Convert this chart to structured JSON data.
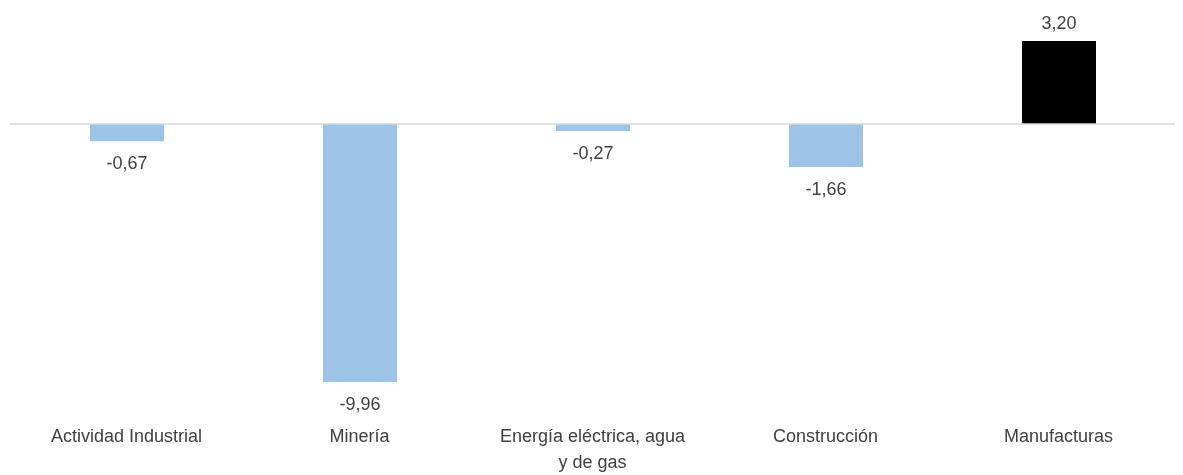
{
  "chart_data": {
    "type": "bar",
    "categories": [
      "Actividad Industrial",
      "Minería",
      "Energía eléctrica, agua y de gas",
      "Construcción",
      "Manufacturas"
    ],
    "values": [
      -0.67,
      -9.96,
      -0.27,
      -1.66,
      3.2
    ],
    "colors": [
      "#9dc3e6",
      "#9dc3e6",
      "#9dc3e6",
      "#9dc3e6",
      "#000000"
    ],
    "value_labels": [
      "-0,67",
      "-9,96",
      "-0,27",
      "-1,66",
      "3,20"
    ]
  }
}
